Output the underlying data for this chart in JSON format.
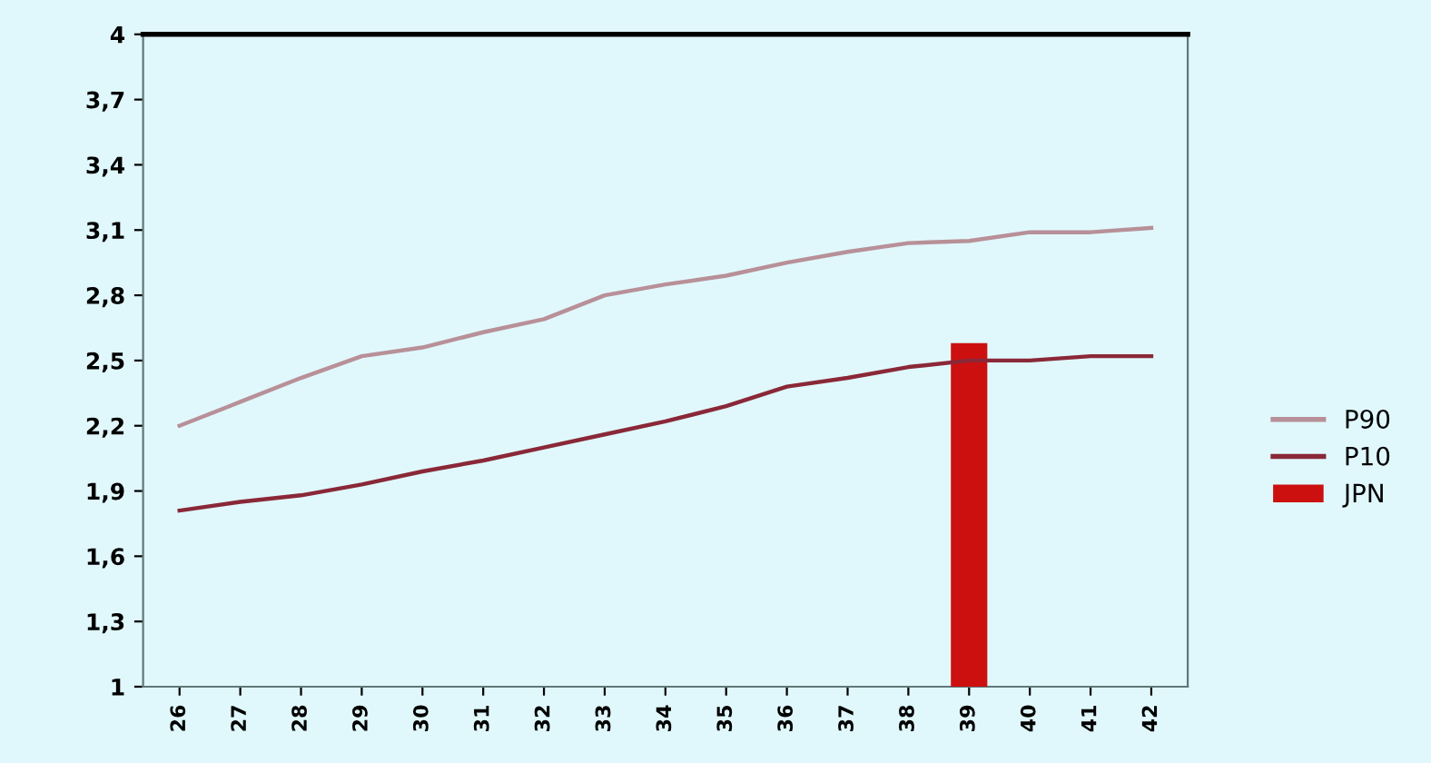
{
  "chart_data": {
    "type": "line",
    "categories": [
      "26",
      "27",
      "28",
      "29",
      "30",
      "31",
      "32",
      "33",
      "34",
      "35",
      "36",
      "37",
      "38",
      "39",
      "40",
      "41",
      "42"
    ],
    "series": [
      {
        "name": "P90",
        "color": "#b89098",
        "values": [
          2.2,
          2.31,
          2.42,
          2.52,
          2.56,
          2.63,
          2.69,
          2.8,
          2.85,
          2.89,
          2.95,
          3.0,
          3.04,
          3.05,
          3.09,
          3.09,
          3.11
        ]
      },
      {
        "name": "P10",
        "color": "#8a2838",
        "values": [
          1.81,
          1.85,
          1.88,
          1.93,
          1.99,
          2.04,
          2.1,
          2.16,
          2.22,
          2.29,
          2.38,
          2.42,
          2.47,
          2.5,
          2.5,
          2.52,
          2.52
        ]
      },
      {
        "name": "JPN",
        "type": "bar",
        "color": "#cc1010",
        "values": [
          null,
          null,
          null,
          null,
          null,
          null,
          null,
          null,
          null,
          null,
          null,
          null,
          null,
          2.58,
          null,
          null,
          null
        ]
      }
    ],
    "ylim": [
      1,
      4
    ],
    "yticks": [
      {
        "value": 1,
        "label": "1"
      },
      {
        "value": 1.3,
        "label": "1,3"
      },
      {
        "value": 1.6,
        "label": "1,6"
      },
      {
        "value": 1.9,
        "label": "1,9"
      },
      {
        "value": 2.2,
        "label": "2,2"
      },
      {
        "value": 2.5,
        "label": "2,5"
      },
      {
        "value": 2.8,
        "label": "2,8"
      },
      {
        "value": 3.1,
        "label": "3,1"
      },
      {
        "value": 3.4,
        "label": "3,4"
      },
      {
        "value": 3.7,
        "label": "3,7"
      },
      {
        "value": 4,
        "label": "4"
      }
    ],
    "grid": false,
    "legend": "right"
  }
}
